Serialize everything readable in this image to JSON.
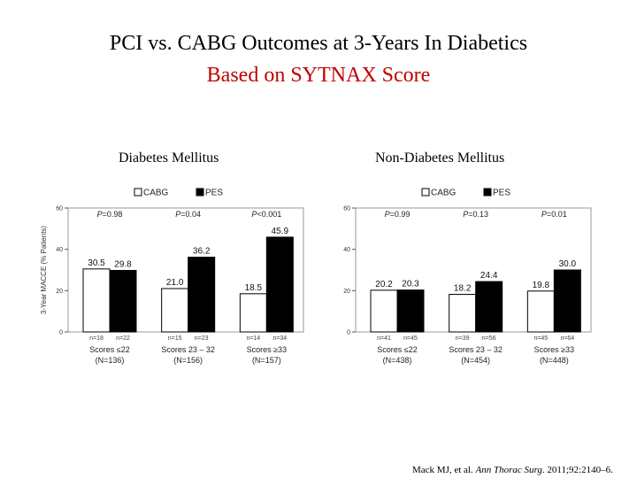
{
  "slide": {
    "title_line1": "PCI vs. CABG Outcomes at 3-Years In Diabetics",
    "title_line2": "Based on SYTNAX Score",
    "citation": {
      "authors": "Mack MJ, et al. ",
      "journal": "Ann Thorac Surg",
      "details": ". 2011;92:2140–6."
    },
    "colors": {
      "title2": "#c00000",
      "cabg": "#ffffff",
      "pes": "#000000"
    }
  },
  "chart_data": [
    {
      "type": "bar",
      "title": "Diabetes Mellitus",
      "ylabel": "3-Year MACCE (% Patients)",
      "ylim": [
        0,
        60
      ],
      "yticks": [
        "0",
        "20",
        "40",
        "60"
      ],
      "legend": [
        "CABG",
        "PES"
      ],
      "categories": [
        "Scores ≤22",
        "Scores 23 – 32",
        "Scores ≥33"
      ],
      "category_n": [
        "(N=136)",
        "(N=156)",
        "(N=157)"
      ],
      "p_values": [
        "P=0.98",
        "P=0.04",
        "P<0.001"
      ],
      "series": [
        {
          "name": "CABG",
          "values": [
            30.5,
            21.0,
            18.5
          ],
          "labels": [
            "30.5",
            "21.0",
            "18.5"
          ],
          "n": [
            "n=18",
            "n=15",
            "n=14"
          ]
        },
        {
          "name": "PES",
          "values": [
            29.8,
            36.2,
            45.9
          ],
          "labels": [
            "29.8",
            "36.2",
            "45.9"
          ],
          "n": [
            "n=22",
            "n=23",
            "n=34"
          ]
        }
      ]
    },
    {
      "type": "bar",
      "title": "Non-Diabetes Mellitus",
      "ylabel": "",
      "ylim": [
        0,
        60
      ],
      "yticks": [
        "0",
        "20",
        "40",
        "60"
      ],
      "legend": [
        "CABG",
        "PES"
      ],
      "categories": [
        "Scores ≤22",
        "Scores 23 – 32",
        "Scores ≥33"
      ],
      "category_n": [
        "(N=438)",
        "(N=454)",
        "(N=448)"
      ],
      "p_values": [
        "P=0.99",
        "P=0.13",
        "P=0.01"
      ],
      "series": [
        {
          "name": "CABG",
          "values": [
            20.2,
            18.2,
            19.8
          ],
          "labels": [
            "20.2",
            "18.2",
            "19.8"
          ],
          "n": [
            "n=41",
            "n=39",
            "n=45"
          ]
        },
        {
          "name": "PES",
          "values": [
            20.3,
            24.4,
            30.0
          ],
          "labels": [
            "20.3",
            "24.4",
            "30.0"
          ],
          "n": [
            "n=45",
            "n=56",
            "n=64"
          ]
        }
      ]
    }
  ]
}
